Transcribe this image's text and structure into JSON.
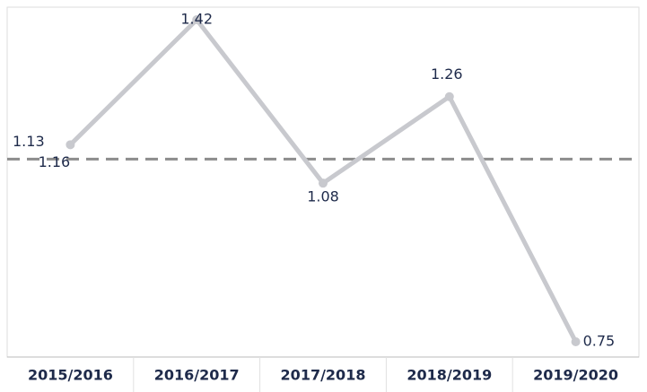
{
  "chart_data": {
    "type": "line",
    "categories": [
      "2015/2016",
      "2016/2017",
      "2017/2018",
      "2018/2019",
      "2019/2020"
    ],
    "series": [
      {
        "color": "#c8c9ce",
        "values": [
          1.16,
          1.42,
          1.08,
          1.26,
          0.75
        ]
      }
    ],
    "reference_line": {
      "value": 1.13,
      "color": "#8c8c8c"
    }
  }
}
